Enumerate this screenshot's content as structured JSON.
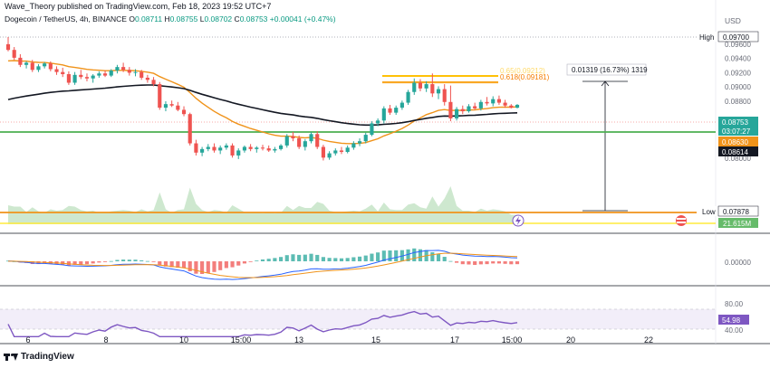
{
  "header": {
    "publisher": "Wave_Theory published on TradingView.com, Feb 18, 2023 19:52 UTC+7",
    "symbol": "Dogecoin / TetherUS, 4h, BINANCE",
    "ohlc_O": "O",
    "ohlc_O_val": "0.08711",
    "ohlc_H": "H",
    "ohlc_H_val": "0.08755",
    "ohlc_L": "L",
    "ohlc_L_val": "0.08702",
    "ohlc_C": "C",
    "ohlc_C_val": "0.08753",
    "change": "+0.00041 (+0.47%)",
    "currency": "USD"
  },
  "colors": {
    "up": "#26a69a",
    "down": "#ef5350",
    "ema_fast": "#f0931a",
    "ema_slow": "#131722",
    "support": "#4caf50",
    "fib": "#ffc107",
    "rsi": "#7e57c2",
    "macd": "#2962ff"
  },
  "price_axis": {
    "ticks": [
      "0.09600",
      "0.09400",
      "0.09200",
      "0.09000",
      "0.08800",
      "0.08400",
      "0.08200",
      "0.08000"
    ],
    "high_label": "High",
    "high_value": "0.09700",
    "low_label": "Low",
    "low_value": "0.07878",
    "last_price": "0.08753",
    "countdown": "03:07:27",
    "ema_fast_value": "0.08630",
    "ema_slow_value": "0.08614",
    "volume_value": "21.615M"
  },
  "annotations": {
    "fib_label": "0.618(0.09181)",
    "fib_label_faint": "0.65(0.09212)",
    "measure_label": "0.01319 (16.73%) 1319"
  },
  "macd_axis": {
    "zero": "0.00000"
  },
  "rsi_axis": {
    "upper": "80.00",
    "lower": "40.00",
    "value": "54.98"
  },
  "time_axis": [
    "6",
    "8",
    "10",
    "15:00",
    "13",
    "15",
    "17",
    "15:00",
    "20",
    "22"
  ],
  "footer": {
    "brand": "TradingView"
  },
  "chart_data": {
    "type": "candlestick",
    "title": "Dogecoin / TetherUS, 4h, BINANCE",
    "y_range": [
      0.0787,
      0.0971
    ],
    "candles": [
      [
        0.096,
        0.097,
        0.095,
        0.0952
      ],
      [
        0.0952,
        0.0956,
        0.0938,
        0.0941
      ],
      [
        0.0941,
        0.0946,
        0.0928,
        0.0931
      ],
      [
        0.0931,
        0.0936,
        0.0926,
        0.0934
      ],
      [
        0.0934,
        0.0938,
        0.0921,
        0.0924
      ],
      [
        0.0924,
        0.0932,
        0.0921,
        0.0929
      ],
      [
        0.0929,
        0.0935,
        0.0926,
        0.0933
      ],
      [
        0.0933,
        0.0936,
        0.0922,
        0.0925
      ],
      [
        0.0925,
        0.0929,
        0.0917,
        0.0921
      ],
      [
        0.0921,
        0.0927,
        0.0914,
        0.0918
      ],
      [
        0.0918,
        0.0922,
        0.0903,
        0.0906
      ],
      [
        0.0906,
        0.0921,
        0.0903,
        0.0917
      ],
      [
        0.0917,
        0.0924,
        0.0911,
        0.0914
      ],
      [
        0.0914,
        0.0919,
        0.0908,
        0.0912
      ],
      [
        0.0912,
        0.0918,
        0.0906,
        0.0916
      ],
      [
        0.0916,
        0.0922,
        0.0913,
        0.0919
      ],
      [
        0.0919,
        0.0923,
        0.0914,
        0.0916
      ],
      [
        0.0916,
        0.0925,
        0.0914,
        0.0923
      ],
      [
        0.0923,
        0.0931,
        0.0919,
        0.0928
      ],
      [
        0.0928,
        0.0934,
        0.0921,
        0.0924
      ],
      [
        0.0924,
        0.0928,
        0.0916,
        0.092
      ],
      [
        0.092,
        0.0925,
        0.0915,
        0.0921
      ],
      [
        0.0921,
        0.0924,
        0.091,
        0.0913
      ],
      [
        0.0913,
        0.0917,
        0.0906,
        0.091
      ],
      [
        0.091,
        0.0914,
        0.0901,
        0.0904
      ],
      [
        0.0904,
        0.0907,
        0.0868,
        0.0871
      ],
      [
        0.0871,
        0.088,
        0.0866,
        0.0876
      ],
      [
        0.0876,
        0.0881,
        0.0872,
        0.0874
      ],
      [
        0.0874,
        0.0879,
        0.0866,
        0.0868
      ],
      [
        0.0868,
        0.0873,
        0.0859,
        0.0862
      ],
      [
        0.0862,
        0.0864,
        0.0818,
        0.0821
      ],
      [
        0.0821,
        0.0826,
        0.0804,
        0.0808
      ],
      [
        0.0808,
        0.0816,
        0.0803,
        0.0813
      ],
      [
        0.0813,
        0.082,
        0.081,
        0.0816
      ],
      [
        0.0816,
        0.0821,
        0.0808,
        0.0811
      ],
      [
        0.0811,
        0.0818,
        0.0806,
        0.0815
      ],
      [
        0.0815,
        0.0821,
        0.0812,
        0.0818
      ],
      [
        0.0818,
        0.0821,
        0.0801,
        0.0804
      ],
      [
        0.0804,
        0.0814,
        0.0799,
        0.0811
      ],
      [
        0.0811,
        0.0818,
        0.0808,
        0.0816
      ],
      [
        0.0816,
        0.082,
        0.081,
        0.0813
      ],
      [
        0.0813,
        0.0817,
        0.0808,
        0.0815
      ],
      [
        0.0815,
        0.0819,
        0.0811,
        0.0814
      ],
      [
        0.0814,
        0.0818,
        0.0809,
        0.0811
      ],
      [
        0.0811,
        0.0816,
        0.0808,
        0.0813
      ],
      [
        0.0813,
        0.082,
        0.0811,
        0.0818
      ],
      [
        0.0818,
        0.0834,
        0.0815,
        0.0831
      ],
      [
        0.0831,
        0.0837,
        0.0824,
        0.0828
      ],
      [
        0.0828,
        0.0832,
        0.0813,
        0.0816
      ],
      [
        0.0816,
        0.0827,
        0.0811,
        0.0824
      ],
      [
        0.0824,
        0.0837,
        0.0821,
        0.0834
      ],
      [
        0.0834,
        0.0838,
        0.0813,
        0.0816
      ],
      [
        0.0816,
        0.0819,
        0.0797,
        0.0801
      ],
      [
        0.0801,
        0.081,
        0.0798,
        0.0807
      ],
      [
        0.0807,
        0.0814,
        0.0804,
        0.0811
      ],
      [
        0.0811,
        0.0816,
        0.0806,
        0.0809
      ],
      [
        0.0809,
        0.0818,
        0.0807,
        0.0815
      ],
      [
        0.0815,
        0.0824,
        0.0812,
        0.0821
      ],
      [
        0.0821,
        0.0828,
        0.0817,
        0.0824
      ],
      [
        0.0824,
        0.0836,
        0.0821,
        0.0833
      ],
      [
        0.0833,
        0.0852,
        0.0831,
        0.0849
      ],
      [
        0.0849,
        0.0856,
        0.0845,
        0.0853
      ],
      [
        0.0853,
        0.0873,
        0.0849,
        0.087
      ],
      [
        0.087,
        0.0875,
        0.0861,
        0.0864
      ],
      [
        0.0864,
        0.0874,
        0.0861,
        0.0871
      ],
      [
        0.0871,
        0.0881,
        0.0868,
        0.0878
      ],
      [
        0.0878,
        0.0896,
        0.0875,
        0.0893
      ],
      [
        0.0893,
        0.0912,
        0.0889,
        0.0906
      ],
      [
        0.0906,
        0.0911,
        0.0894,
        0.0898
      ],
      [
        0.0898,
        0.0908,
        0.0893,
        0.0904
      ],
      [
        0.0904,
        0.0919,
        0.0886,
        0.0891
      ],
      [
        0.0891,
        0.0901,
        0.0883,
        0.0897
      ],
      [
        0.0897,
        0.0904,
        0.0874,
        0.0879
      ],
      [
        0.0879,
        0.0902,
        0.0852,
        0.0856
      ],
      [
        0.0856,
        0.0872,
        0.0853,
        0.0869
      ],
      [
        0.0869,
        0.0874,
        0.0862,
        0.0866
      ],
      [
        0.0866,
        0.0876,
        0.0864,
        0.0873
      ],
      [
        0.0873,
        0.0878,
        0.0868,
        0.087
      ],
      [
        0.087,
        0.0882,
        0.0867,
        0.0879
      ],
      [
        0.0879,
        0.0886,
        0.0874,
        0.0877
      ],
      [
        0.0877,
        0.0887,
        0.0873,
        0.0883
      ],
      [
        0.0883,
        0.0888,
        0.0875,
        0.0878
      ],
      [
        0.0878,
        0.0882,
        0.0871,
        0.0874
      ],
      [
        0.0874,
        0.0876,
        0.087,
        0.0871
      ],
      [
        0.0871,
        0.0876,
        0.087,
        0.0875
      ]
    ]
  }
}
